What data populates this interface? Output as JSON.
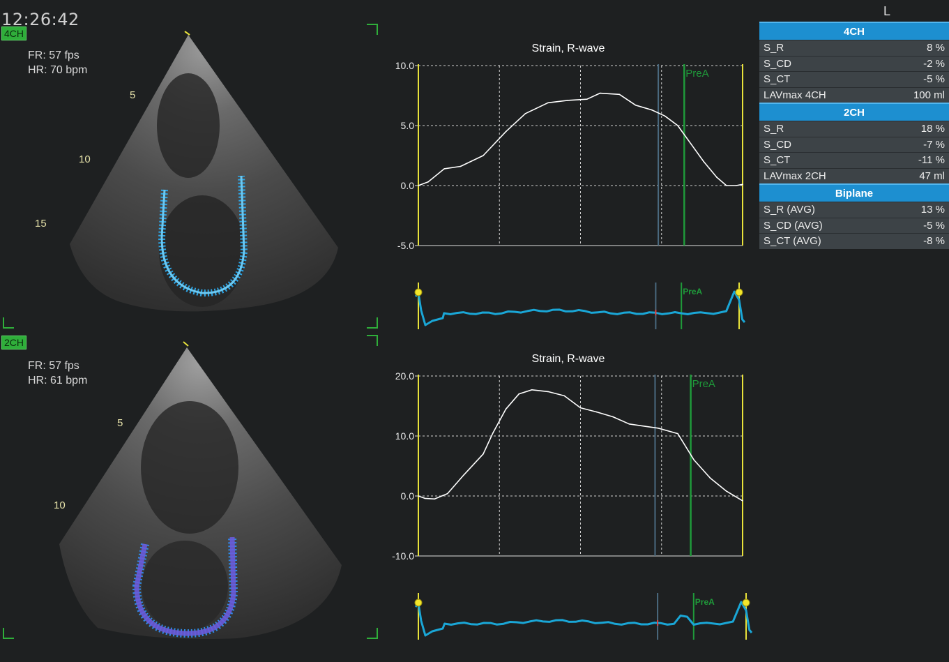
{
  "clock": "12:26:42",
  "top_right_marker": "L",
  "views": [
    {
      "tag": "4CH",
      "fr": "FR: 57 fps",
      "hr": "HR: 70 bpm",
      "depth_marks": [
        "5",
        "10",
        "15"
      ],
      "chart": {
        "title": "Strain, R-wave",
        "y_ticks": [
          "10.0",
          "5.0",
          "0.0",
          "-5.0"
        ],
        "ylim": [
          -5,
          10
        ],
        "marker_label": "PreA",
        "mini_marker_label": "PreA"
      }
    },
    {
      "tag": "2CH",
      "fr": "FR: 57 fps",
      "hr": "HR: 61 bpm",
      "depth_marks": [
        "5",
        "10"
      ],
      "chart": {
        "title": "Strain, R-wave",
        "y_ticks": [
          "20.0",
          "10.0",
          "0.0",
          "-10.0"
        ],
        "ylim": [
          -10,
          20
        ],
        "marker_label": "PreA",
        "mini_marker_label": "PreA"
      }
    }
  ],
  "chart_data": [
    {
      "type": "line",
      "title": "Strain, R-wave",
      "ylim": [
        -5,
        10
      ],
      "y_ticks": [
        10,
        5,
        0,
        -5
      ],
      "grid": true,
      "x_range": [
        0,
        1
      ],
      "x": [
        0.0,
        0.03,
        0.08,
        0.13,
        0.2,
        0.27,
        0.33,
        0.4,
        0.46,
        0.52,
        0.56,
        0.62,
        0.67,
        0.72,
        0.76,
        0.8,
        0.84,
        0.88,
        0.92,
        0.95,
        0.98,
        1.0
      ],
      "series": [
        {
          "values": [
            0.0,
            0.3,
            1.4,
            1.6,
            2.5,
            4.5,
            6.0,
            6.9,
            7.1,
            7.2,
            7.7,
            7.6,
            6.7,
            6.3,
            5.8,
            5.0,
            3.5,
            2.0,
            0.7,
            0.0,
            0.0,
            0.1
          ]
        }
      ],
      "vertical_markers": [
        {
          "x": 0.0,
          "color": "#e8e23a"
        },
        {
          "x": 0.74,
          "color": "#4a6a80"
        },
        {
          "x": 0.82,
          "color": "#1f9a3a",
          "label": "PreA"
        },
        {
          "x": 1.0,
          "color": "#e8e23a"
        }
      ]
    },
    {
      "type": "line",
      "title": "Strain, R-wave",
      "ylim": [
        -10,
        20
      ],
      "y_ticks": [
        20,
        10,
        0,
        -10
      ],
      "grid": true,
      "x_range": [
        0,
        1
      ],
      "x": [
        0.0,
        0.02,
        0.05,
        0.09,
        0.14,
        0.2,
        0.23,
        0.27,
        0.31,
        0.35,
        0.4,
        0.45,
        0.5,
        0.55,
        0.6,
        0.65,
        0.7,
        0.74,
        0.8,
        0.85,
        0.9,
        0.95,
        1.0
      ],
      "series": [
        {
          "values": [
            0.0,
            -0.4,
            -0.5,
            0.4,
            3.5,
            7.0,
            10.5,
            14.5,
            17.0,
            17.7,
            17.4,
            16.7,
            14.7,
            14.0,
            13.2,
            12.0,
            11.6,
            11.3,
            10.4,
            6.0,
            3.0,
            0.8,
            -0.8
          ]
        }
      ],
      "vertical_markers": [
        {
          "x": 0.0,
          "color": "#e8e23a"
        },
        {
          "x": 0.73,
          "color": "#4a6a80"
        },
        {
          "x": 0.84,
          "color": "#1f9a3a",
          "label": "PreA"
        },
        {
          "x": 1.0,
          "color": "#e8e23a"
        }
      ]
    }
  ],
  "panel": {
    "sections": [
      {
        "header": "4CH",
        "rows": [
          {
            "label": "S_R",
            "value": "8 %"
          },
          {
            "label": "S_CD",
            "value": "-2 %"
          },
          {
            "label": "S_CT",
            "value": "-5 %"
          },
          {
            "label": "LAVmax 4CH",
            "value": "100 ml"
          }
        ]
      },
      {
        "header": "2CH",
        "rows": [
          {
            "label": "S_R",
            "value": "18 %"
          },
          {
            "label": "S_CD",
            "value": "-7 %"
          },
          {
            "label": "S_CT",
            "value": "-11 %"
          },
          {
            "label": "LAVmax 2CH",
            "value": "47 ml"
          }
        ]
      },
      {
        "header": "Biplane",
        "rows": [
          {
            "label": "S_R (AVG)",
            "value": "13 %"
          },
          {
            "label": "S_CD (AVG)",
            "value": "-5 %"
          },
          {
            "label": "S_CT (AVG)",
            "value": "-8 %"
          }
        ]
      }
    ]
  },
  "colors": {
    "background": "#1e2021",
    "panel_header": "#1d8fd0",
    "panel_row": "#3d4347",
    "trace": "#ffffff",
    "ecg": "#1aa6d6",
    "frame_marker": "#e8e23a",
    "prea_marker": "#1f9a3a",
    "view_tag": "#2fae3a"
  }
}
